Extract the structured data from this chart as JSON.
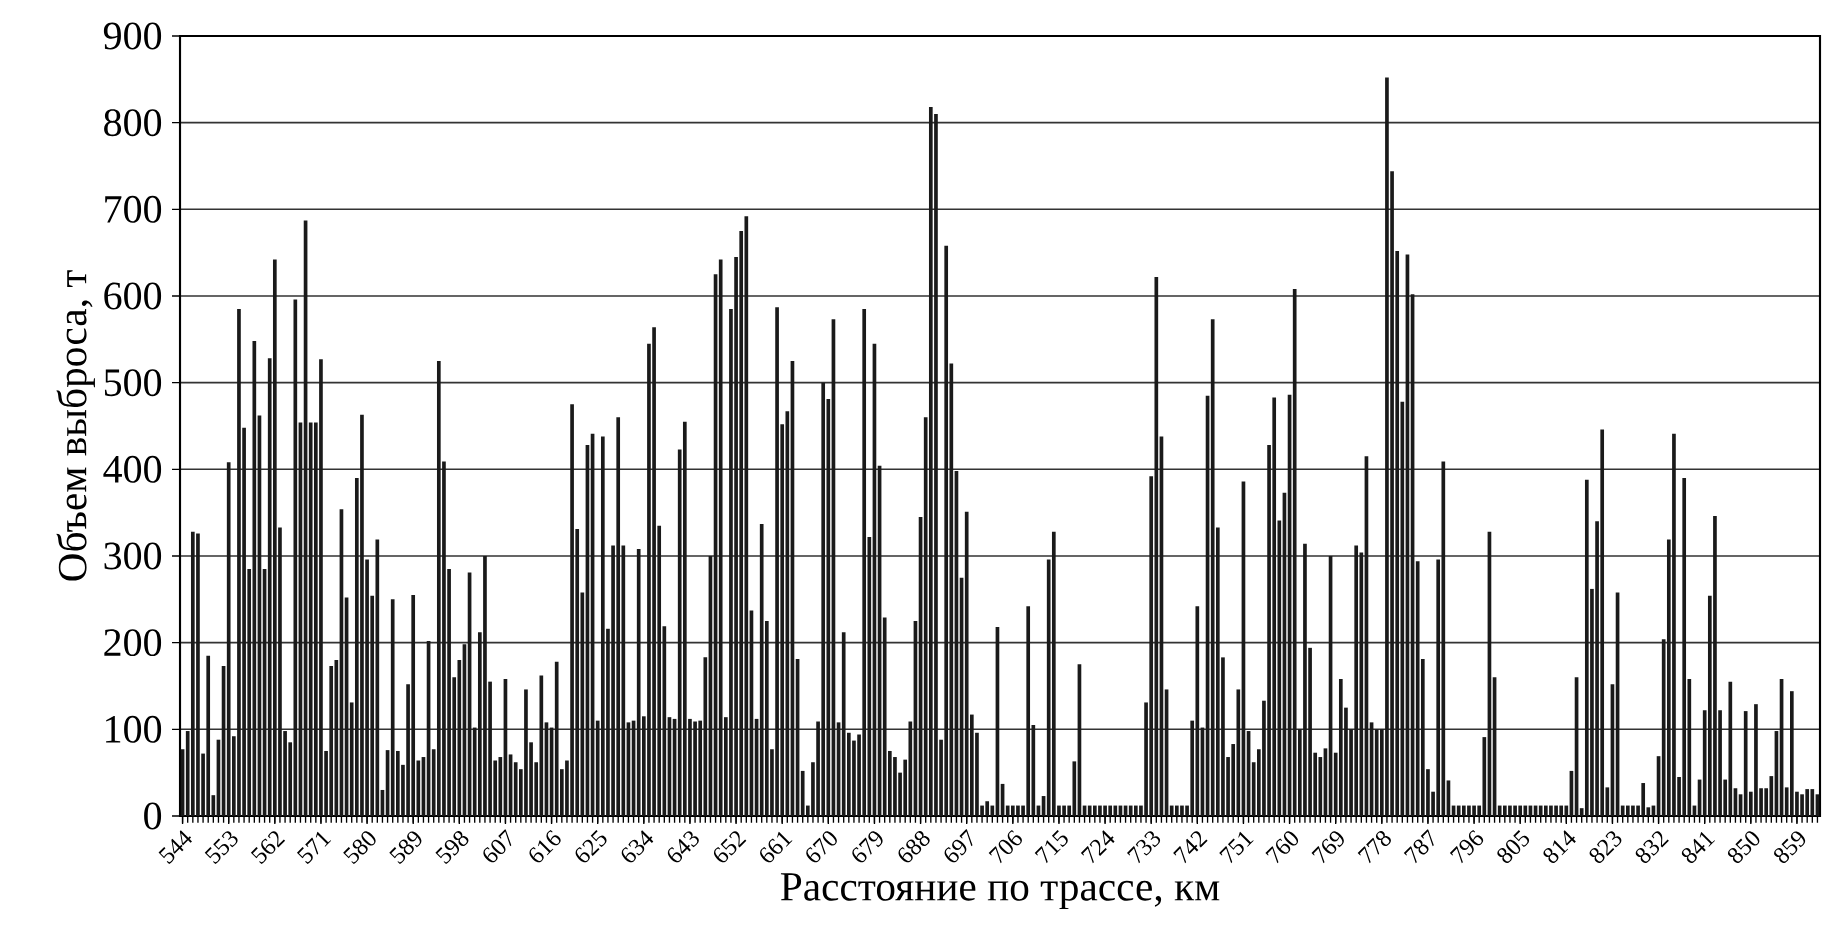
{
  "chart_data": {
    "type": "bar",
    "xlabel": "Расстояние по трассе, км",
    "ylabel": "Объем выброса, т",
    "color": "#1a1a1a",
    "grid": "y",
    "ylim": [
      0,
      900
    ],
    "yticks": [
      0,
      100,
      200,
      300,
      400,
      500,
      600,
      700,
      800,
      900
    ],
    "categories": [
      "544",
      null,
      null,
      null,
      null,
      null,
      null,
      null,
      null,
      "553",
      null,
      null,
      null,
      null,
      null,
      null,
      null,
      null,
      "562",
      null,
      null,
      null,
      null,
      null,
      null,
      null,
      null,
      "571",
      null,
      null,
      null,
      null,
      null,
      null,
      null,
      null,
      "580",
      null,
      null,
      null,
      null,
      null,
      null,
      null,
      null,
      "589",
      null,
      null,
      null,
      null,
      null,
      null,
      null,
      null,
      "598",
      null,
      null,
      null,
      null,
      null,
      null,
      null,
      null,
      "607",
      null,
      null,
      null,
      null,
      null,
      null,
      null,
      null,
      "616",
      null,
      null,
      null,
      null,
      null,
      null,
      null,
      null,
      "625",
      null,
      null,
      null,
      null,
      null,
      null,
      null,
      null,
      "634",
      null,
      null,
      null,
      null,
      null,
      null,
      null,
      null,
      "643",
      null,
      null,
      null,
      null,
      null,
      null,
      null,
      null,
      "652",
      null,
      null,
      null,
      null,
      null,
      null,
      null,
      null,
      "661",
      null,
      null,
      null,
      null,
      null,
      null,
      null,
      null,
      "670",
      null,
      null,
      null,
      null,
      null,
      null,
      null,
      null,
      "679",
      null,
      null,
      null,
      null,
      null,
      null,
      null,
      null,
      "688",
      null,
      null,
      null,
      null,
      null,
      null,
      null,
      null,
      "697",
      null,
      null,
      null,
      null,
      null,
      null,
      null,
      null,
      "706",
      null,
      null,
      null,
      null,
      null,
      null,
      null,
      null,
      "715",
      null,
      null,
      null,
      null,
      null,
      null,
      null,
      null,
      "724",
      null,
      null,
      null,
      null,
      null,
      null,
      null,
      null,
      "733",
      null,
      null,
      null,
      null,
      null,
      null,
      null,
      null,
      "742",
      null,
      null,
      null,
      null,
      null,
      null,
      null,
      null,
      "751",
      null,
      null,
      null,
      null,
      null,
      null,
      null,
      null,
      "760",
      null,
      null,
      null,
      null,
      null,
      null,
      null,
      null,
      "769",
      null,
      null,
      null,
      null,
      null,
      null,
      null,
      null,
      "778",
      null,
      null,
      null,
      null,
      null,
      null,
      null,
      null,
      "787",
      null,
      null,
      null,
      null,
      null,
      null,
      null,
      null,
      "796",
      null,
      null,
      null,
      null,
      null,
      null,
      null,
      null,
      "805",
      null,
      null,
      null,
      null,
      null,
      null,
      null,
      null,
      "814",
      null,
      null,
      null,
      null,
      null,
      null,
      null,
      null,
      "823",
      null,
      null,
      null,
      null,
      null,
      null,
      null,
      null,
      "832",
      null,
      null,
      null,
      null,
      null,
      null,
      null,
      null,
      "841",
      null,
      null,
      null,
      null,
      null,
      null,
      null,
      null,
      "850",
      null,
      null,
      null,
      null,
      null,
      null,
      null,
      null,
      "859",
      null,
      null,
      null,
      null
    ],
    "values": [
      77,
      98,
      328,
      326,
      72,
      185,
      24,
      88,
      173,
      408,
      92,
      585,
      448,
      285,
      548,
      462,
      285,
      528,
      642,
      333,
      98,
      85,
      596,
      454,
      687,
      454,
      454,
      527,
      75,
      173,
      180,
      354,
      252,
      131,
      390,
      463,
      296,
      254,
      319,
      30,
      76,
      250,
      75,
      59,
      152,
      255,
      64,
      68,
      202,
      77,
      525,
      409,
      285,
      160,
      180,
      198,
      281,
      102,
      212,
      300,
      155,
      64,
      68,
      158,
      71,
      62,
      54,
      146,
      85,
      62,
      162,
      108,
      102,
      178,
      54,
      64,
      475,
      331,
      258,
      428,
      441,
      110,
      438,
      216,
      312,
      460,
      312,
      108,
      110,
      308,
      115,
      545,
      564,
      335,
      219,
      114,
      112,
      423,
      455,
      112,
      109,
      110,
      183,
      300,
      625,
      642,
      114,
      585,
      645,
      675,
      692,
      237,
      112,
      337,
      225,
      77,
      587,
      452,
      467,
      525,
      181,
      52,
      12,
      62,
      109,
      500,
      481,
      573,
      108,
      212,
      96,
      87,
      94,
      585,
      322,
      545,
      404,
      229,
      75,
      68,
      50,
      65,
      109,
      225,
      345,
      460,
      818,
      810,
      88,
      658,
      522,
      398,
      275,
      351,
      117,
      96,
      12,
      17,
      12,
      218,
      37,
      12,
      12,
      12,
      12,
      242,
      105,
      12,
      23,
      296,
      328,
      12,
      12,
      12,
      63,
      175,
      12,
      12,
      12,
      12,
      12,
      12,
      12,
      12,
      12,
      12,
      12,
      12,
      131,
      392,
      622,
      438,
      146,
      12,
      12,
      12,
      12,
      110,
      242,
      102,
      485,
      573,
      333,
      183,
      68,
      83,
      146,
      386,
      98,
      62,
      77,
      133,
      428,
      483,
      341,
      373,
      486,
      608,
      100,
      314,
      194,
      73,
      68,
      78,
      300,
      73,
      158,
      125,
      100,
      312,
      304,
      415,
      108,
      100,
      100,
      852,
      744,
      652,
      478,
      648,
      602,
      294,
      181,
      54,
      28,
      296,
      409,
      41,
      12,
      12,
      12,
      12,
      12,
      12,
      91,
      328,
      160,
      12,
      12,
      12,
      12,
      12,
      12,
      12,
      12,
      12,
      12,
      12,
      12,
      12,
      12,
      52,
      160,
      9,
      388,
      262,
      340,
      446,
      33,
      152,
      258,
      12,
      12,
      12,
      12,
      38,
      10,
      12,
      69,
      204,
      319,
      441,
      45,
      390,
      158,
      12,
      42,
      122,
      254,
      346,
      122,
      42,
      155,
      32,
      25,
      121,
      28,
      129,
      32,
      32,
      46,
      98,
      158,
      33,
      144,
      28,
      25,
      31,
      31,
      25
    ]
  }
}
